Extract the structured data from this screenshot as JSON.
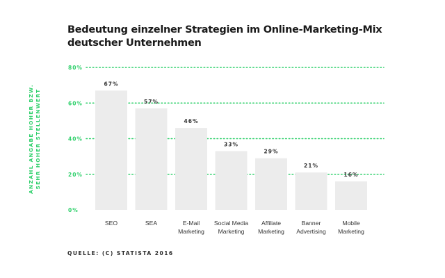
{
  "chart_data": {
    "type": "bar",
    "title_lines": [
      "Bedeutung einzelner Strategien im Online-Marketing-Mix",
      "deutscher Unternehmen"
    ],
    "ylabel_lines": [
      "ANZAHL ANGABE HOHER BZW.",
      "SEHR HOHER STELLENWERT"
    ],
    "xlabel": "",
    "categories": [
      [
        "SEO"
      ],
      [
        "SEA"
      ],
      [
        "E-Mail",
        "Marketing"
      ],
      [
        "Social Media",
        "Marketing"
      ],
      [
        "Affiliate",
        "Marketing"
      ],
      [
        "Banner",
        "Advertising"
      ],
      [
        "Mobile",
        "Marketing"
      ]
    ],
    "values": [
      67,
      57,
      46,
      33,
      29,
      21,
      16
    ],
    "value_labels": [
      "67%",
      "57%",
      "46%",
      "33%",
      "29%",
      "21%",
      "16%"
    ],
    "ylim": [
      0,
      80
    ],
    "yticks": [
      0,
      20,
      40,
      60,
      80
    ],
    "ytick_labels": [
      "0%",
      "20%",
      "40%",
      "60%",
      "80%"
    ],
    "grid": true,
    "colors": {
      "bar": "#ececec",
      "accent": "#2fd06b",
      "tick_text": "#2fd06b",
      "value_text": "#333333",
      "category_text": "#333333"
    }
  },
  "source": "QUELLE: (C) STATISTA 2016"
}
